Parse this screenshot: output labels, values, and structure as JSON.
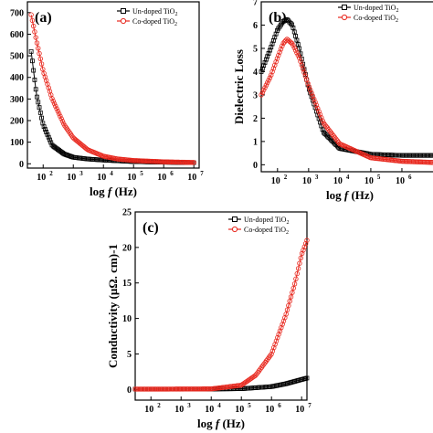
{
  "chart_data": [
    {
      "type": "scatter",
      "panel_label": "(a)",
      "xlabel": "log f (Hz)",
      "ylabel": "",
      "x_scale": "log",
      "xlim": [
        30,
        15000000
      ],
      "ylim": [
        -20,
        750
      ],
      "x_ticks": [
        100,
        1000,
        10000,
        100000,
        1000000,
        10000000
      ],
      "x_tick_labels": [
        "10",
        "10",
        "10",
        "10",
        "10",
        "10"
      ],
      "x_tick_exps": [
        "2",
        "3",
        "4",
        "5",
        "6",
        "7"
      ],
      "y_ticks": [
        0,
        100,
        200,
        300,
        400,
        500,
        600,
        700
      ],
      "y_tick_labels": [
        "0",
        "100",
        "200",
        "300",
        "400",
        "500",
        "600",
        "700"
      ],
      "legend_position": "top-right",
      "series": [
        {
          "name": "Un-doped TiO",
          "name_sub": "2",
          "color": "#000000",
          "marker": "square",
          "x": [
            40,
            60,
            100,
            200,
            500,
            1000,
            3000,
            10000,
            100000,
            1000000,
            10000000
          ],
          "y": [
            520,
            320,
            180,
            85,
            45,
            30,
            22,
            17,
            10,
            7,
            5
          ]
        },
        {
          "name": "Co-doped TiO",
          "name_sub": "2",
          "color": "#e8281e",
          "marker": "circle",
          "x": [
            40,
            60,
            100,
            200,
            500,
            1000,
            3000,
            10000,
            30000,
            100000,
            1000000,
            10000000
          ],
          "y": [
            690,
            570,
            430,
            300,
            180,
            120,
            65,
            35,
            22,
            15,
            9,
            6
          ]
        }
      ]
    },
    {
      "type": "scatter",
      "panel_label": "(b)",
      "xlabel": "log f (Hz)",
      "ylabel": "Dielectric Loss",
      "x_scale": "log",
      "xlim": [
        30,
        15000000
      ],
      "ylim": [
        -0.3,
        7
      ],
      "x_ticks": [
        100,
        1000,
        10000,
        100000,
        1000000,
        10000000
      ],
      "x_tick_labels": [
        "10",
        "10",
        "10",
        "10",
        "10",
        "10"
      ],
      "x_tick_exps": [
        "2",
        "3",
        "4",
        "5",
        "6",
        "7"
      ],
      "y_ticks": [
        0,
        1,
        2,
        3,
        4,
        5,
        6,
        7
      ],
      "y_tick_labels": [
        "0",
        "1",
        "2",
        "3",
        "4",
        "5",
        "6",
        "7"
      ],
      "legend_position": "top-right",
      "series": [
        {
          "name": "Un-doped TiO",
          "name_sub": "2",
          "color": "#000000",
          "marker": "square",
          "x": [
            30,
            60,
            100,
            150,
            200,
            300,
            500,
            1000,
            3000,
            10000,
            100000,
            1000000,
            10000000
          ],
          "y": [
            4.0,
            5.0,
            5.8,
            6.15,
            6.25,
            6.0,
            5.0,
            3.3,
            1.4,
            0.7,
            0.45,
            0.4,
            0.4
          ]
        },
        {
          "name": "Co-doped TiO",
          "name_sub": "2",
          "color": "#e8281e",
          "marker": "circle",
          "x": [
            30,
            60,
            100,
            150,
            200,
            300,
            500,
            1000,
            3000,
            10000,
            100000,
            1000000,
            10000000
          ],
          "y": [
            3.0,
            3.8,
            4.6,
            5.2,
            5.4,
            5.2,
            4.6,
            3.4,
            1.8,
            0.9,
            0.3,
            0.15,
            0.1
          ]
        }
      ]
    },
    {
      "type": "scatter",
      "panel_label": "(c)",
      "xlabel": "log f (Hz)",
      "ylabel": "Conductivity (μΩ. cm)-1",
      "x_scale": "log",
      "xlim": [
        30,
        15000000
      ],
      "ylim": [
        -1.5,
        25
      ],
      "x_ticks": [
        100,
        1000,
        10000,
        100000,
        1000000,
        10000000
      ],
      "x_tick_labels": [
        "10",
        "10",
        "10",
        "10",
        "10",
        "10"
      ],
      "x_tick_exps": [
        "2",
        "3",
        "4",
        "5",
        "6",
        "7"
      ],
      "y_ticks": [
        0,
        5,
        10,
        15,
        20,
        25
      ],
      "y_tick_labels": [
        "0",
        "5",
        "10",
        "15",
        "20",
        "25"
      ],
      "legend_position": "top-left",
      "series": [
        {
          "name": "Un-doped TiO",
          "name_sub": "2",
          "color": "#000000",
          "marker": "square",
          "x": [
            30,
            100,
            1000,
            10000,
            100000,
            1000000,
            3000000,
            10000000,
            15000000
          ],
          "y": [
            0.05,
            0.05,
            0.05,
            0.06,
            0.1,
            0.4,
            0.8,
            1.4,
            1.6
          ]
        },
        {
          "name": "Co-doped TiO",
          "name_sub": "2",
          "color": "#e8281e",
          "marker": "circle",
          "x": [
            30,
            100,
            1000,
            10000,
            100000,
            300000,
            1000000,
            3000000,
            6000000,
            10000000,
            15000000
          ],
          "y": [
            0.05,
            0.05,
            0.06,
            0.08,
            0.6,
            2.0,
            5.0,
            10.5,
            15.0,
            19.0,
            21.0
          ]
        }
      ]
    }
  ]
}
